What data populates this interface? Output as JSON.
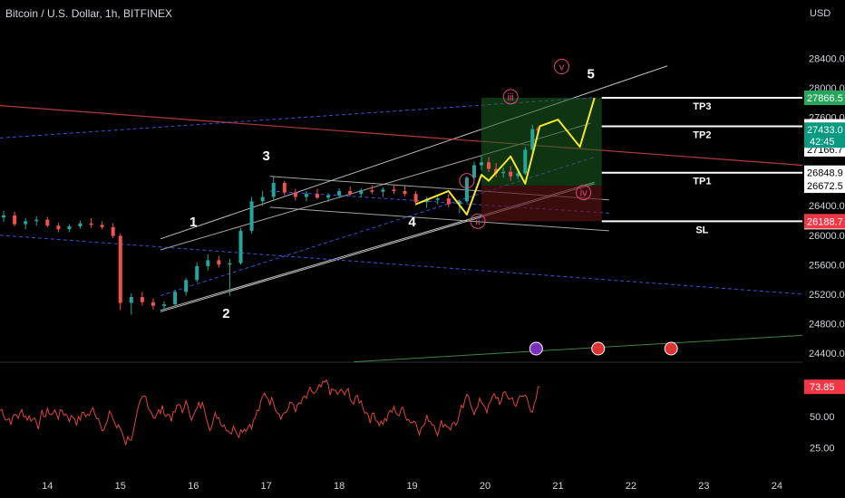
{
  "header": {
    "symbol": "Bitcoin / U.S. Dollar, 1h, BITFINEX",
    "currency": "USD"
  },
  "colors": {
    "bg": "#000000",
    "text": "#d1d4dc",
    "up": "#26a69a",
    "down": "#ef5350",
    "yellow": "#f5e72a",
    "blue": "#3d5afe",
    "red": "#ff5252",
    "target": "#1b5e20",
    "stop": "#5a1212",
    "greenBadge": "#26a65b",
    "redBadge": "#f23645"
  },
  "chart_data": [
    {
      "type": "candlestick",
      "title": "",
      "x_ticks": [
        "14",
        "15",
        "16",
        "17",
        "18",
        "19",
        "20",
        "21",
        "22",
        "23",
        "24"
      ],
      "y_ticks": [
        24400,
        24800,
        25200,
        25600,
        26000,
        26400,
        26800,
        27200,
        27600,
        28000,
        28400
      ],
      "ylim": [
        24300,
        28850
      ],
      "xlim": [
        13.35,
        24.35
      ],
      "candles": [
        [
          13.4,
          26240,
          26330,
          26180,
          26270
        ],
        [
          13.55,
          26270,
          26320,
          26120,
          26150
        ],
        [
          13.7,
          26150,
          26230,
          26080,
          26190
        ],
        [
          13.85,
          26190,
          26260,
          26130,
          26210
        ],
        [
          14.0,
          26210,
          26250,
          26110,
          26130
        ],
        [
          14.15,
          26130,
          26170,
          26040,
          26080
        ],
        [
          14.3,
          26080,
          26150,
          26040,
          26120
        ],
        [
          14.45,
          26120,
          26200,
          26090,
          26160
        ],
        [
          14.6,
          26160,
          26230,
          26100,
          26140
        ],
        [
          14.75,
          26140,
          26190,
          26080,
          26110
        ],
        [
          14.9,
          26110,
          26160,
          25960,
          25990
        ],
        [
          15.0,
          25990,
          26020,
          24980,
          25080
        ],
        [
          15.15,
          25080,
          25210,
          24920,
          25160
        ],
        [
          15.3,
          25160,
          25230,
          25050,
          25090
        ],
        [
          15.45,
          25090,
          25140,
          24990,
          25040
        ],
        [
          15.6,
          25040,
          25100,
          24980,
          25060
        ],
        [
          15.75,
          25060,
          25260,
          25050,
          25230
        ],
        [
          15.9,
          25230,
          25420,
          25180,
          25390
        ],
        [
          16.05,
          25390,
          25630,
          25360,
          25580
        ],
        [
          16.2,
          25580,
          25740,
          25520,
          25660
        ],
        [
          16.35,
          25660,
          25720,
          25560,
          25600
        ],
        [
          16.5,
          25600,
          25680,
          25180,
          25620
        ],
        [
          16.65,
          25620,
          26100,
          25600,
          26060
        ],
        [
          16.8,
          26060,
          26520,
          26020,
          26460
        ],
        [
          16.95,
          26460,
          26600,
          26400,
          26520
        ],
        [
          17.1,
          26520,
          26790,
          26480,
          26710
        ],
        [
          17.25,
          26710,
          26740,
          26540,
          26580
        ],
        [
          17.4,
          26580,
          26630,
          26470,
          26520
        ],
        [
          17.55,
          26520,
          26600,
          26460,
          26560
        ],
        [
          17.7,
          26560,
          26630,
          26490,
          26510
        ],
        [
          17.85,
          26510,
          26570,
          26450,
          26540
        ],
        [
          18.0,
          26540,
          26640,
          26500,
          26600
        ],
        [
          18.15,
          26600,
          26660,
          26530,
          26560
        ],
        [
          18.3,
          26560,
          26640,
          26520,
          26610
        ],
        [
          18.45,
          26610,
          26680,
          26560,
          26590
        ],
        [
          18.6,
          26590,
          26650,
          26520,
          26620
        ],
        [
          18.75,
          26620,
          26690,
          26560,
          26600
        ],
        [
          18.9,
          26600,
          26670,
          26530,
          26560
        ],
        [
          19.05,
          26560,
          26600,
          26400,
          26450
        ],
        [
          19.2,
          26450,
          26520,
          26370,
          26480
        ],
        [
          19.35,
          26480,
          26550,
          26420,
          26500
        ],
        [
          19.5,
          26500,
          26560,
          26380,
          26420
        ],
        [
          19.65,
          26420,
          26480,
          26300,
          26460
        ],
        [
          19.75,
          26460,
          26800,
          26440,
          26780
        ],
        [
          19.85,
          26780,
          27000,
          26740,
          26950
        ],
        [
          19.95,
          26950,
          27080,
          26880,
          26990
        ],
        [
          20.05,
          26990,
          27060,
          26860,
          26900
        ],
        [
          20.15,
          26900,
          26980,
          26790,
          26840
        ],
        [
          20.25,
          26840,
          26920,
          26780,
          26860
        ],
        [
          20.35,
          26860,
          26940,
          26740,
          26800
        ],
        [
          20.45,
          26800,
          26880,
          26760,
          26840
        ],
        [
          20.55,
          26840,
          27200,
          26820,
          27160
        ],
        [
          20.65,
          27160,
          27500,
          27120,
          27440
        ],
        [
          20.72,
          27440,
          27470,
          27380,
          27433
        ]
      ],
      "levels": [
        {
          "label": "TP3",
          "price": 27866.5,
          "badge": "27866.5"
        },
        {
          "label": "TP2",
          "price": 27479.2,
          "badge": "27479.2"
        },
        {
          "label": "",
          "price": 27166.7,
          "badge": "27166.7"
        },
        {
          "label": "TP1",
          "price": 26848.9,
          "badge": "26848.9"
        },
        {
          "label": "",
          "price": 26672.5,
          "badge": "26672.5"
        },
        {
          "label": "SL",
          "price": 26188.7,
          "badge": "26188.7"
        },
        {
          "label": "",
          "price": 26177.3,
          "badge": "26177.3"
        }
      ],
      "price_badges": [
        {
          "price": 27866.5,
          "text": "27866.5",
          "kind": "green"
        },
        {
          "price": 27433.0,
          "text": "27433.0",
          "kind": "teal",
          "sub": "42:45"
        },
        {
          "price": 26188.7,
          "text": "26188.7",
          "kind": "red"
        }
      ],
      "wave_labels": [
        {
          "text": "1",
          "x": 16.0,
          "y": 26120,
          "style": "plain"
        },
        {
          "text": "2",
          "x": 16.45,
          "y": 24880,
          "style": "plain"
        },
        {
          "text": "3",
          "x": 17.0,
          "y": 27020,
          "style": "plain"
        },
        {
          "text": "4",
          "x": 19.0,
          "y": 26120,
          "style": "plain"
        },
        {
          "text": "5",
          "x": 21.45,
          "y": 28130,
          "style": "plain"
        },
        {
          "text": "i",
          "x": 19.75,
          "y": 26740,
          "style": "circle"
        },
        {
          "text": "ii",
          "x": 19.9,
          "y": 26190,
          "style": "circle"
        },
        {
          "text": "iii",
          "x": 20.35,
          "y": 27880,
          "style": "circle"
        },
        {
          "text": "iv",
          "x": 21.35,
          "y": 26580,
          "style": "circle"
        },
        {
          "text": "v",
          "x": 21.05,
          "y": 28290,
          "style": "circle"
        }
      ],
      "projection": [
        [
          19.05,
          26420
        ],
        [
          19.5,
          26600
        ],
        [
          19.75,
          26280
        ],
        [
          19.95,
          26820
        ],
        [
          20.05,
          26740
        ],
        [
          20.35,
          27070
        ],
        [
          20.55,
          26700
        ],
        [
          20.75,
          27480
        ],
        [
          21.0,
          27570
        ],
        [
          21.3,
          27200
        ],
        [
          21.5,
          27866
        ]
      ],
      "rsi": {
        "yticks": [
          25,
          50
        ],
        "ylim": [
          10,
          90
        ],
        "last": "73.85"
      }
    }
  ]
}
